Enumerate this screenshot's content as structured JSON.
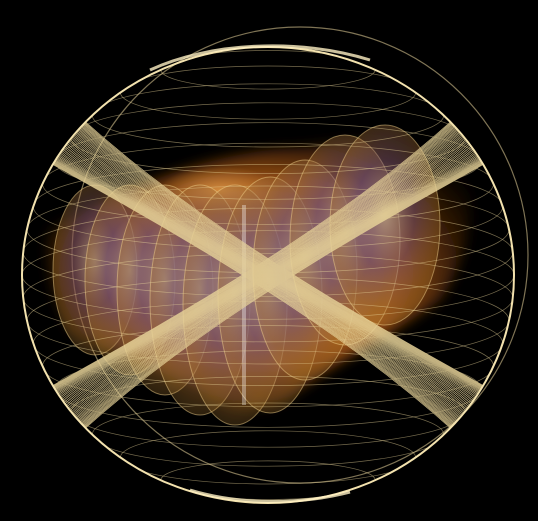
{
  "image": {
    "subject": "wireframe-sphere-with-glowing-ellipses",
    "colors": {
      "background": "#000000",
      "mesh": "#e8d49a",
      "mesh_glow": "#fff1c4",
      "body_orange": "#c8681a",
      "body_gold": "#e3a23a",
      "ellipse_inner": "#8e7a6a",
      "ellipse_purple": "#6e4f7a",
      "highlight": "#ffffff"
    }
  }
}
